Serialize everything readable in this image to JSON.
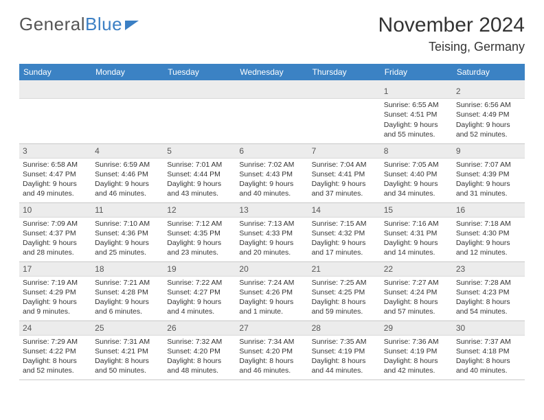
{
  "brand": {
    "part1": "General",
    "part2": "Blue"
  },
  "title": "November 2024",
  "location": "Teising, Germany",
  "colors": {
    "header_bg": "#3b82c4",
    "daynum_bg": "#ececec",
    "text": "#333333"
  },
  "weekdays": [
    "Sunday",
    "Monday",
    "Tuesday",
    "Wednesday",
    "Thursday",
    "Friday",
    "Saturday"
  ],
  "weeks": [
    [
      {
        "n": "",
        "sr": "",
        "ss": "",
        "dl": ""
      },
      {
        "n": "",
        "sr": "",
        "ss": "",
        "dl": ""
      },
      {
        "n": "",
        "sr": "",
        "ss": "",
        "dl": ""
      },
      {
        "n": "",
        "sr": "",
        "ss": "",
        "dl": ""
      },
      {
        "n": "",
        "sr": "",
        "ss": "",
        "dl": ""
      },
      {
        "n": "1",
        "sr": "Sunrise: 6:55 AM",
        "ss": "Sunset: 4:51 PM",
        "dl": "Daylight: 9 hours and 55 minutes."
      },
      {
        "n": "2",
        "sr": "Sunrise: 6:56 AM",
        "ss": "Sunset: 4:49 PM",
        "dl": "Daylight: 9 hours and 52 minutes."
      }
    ],
    [
      {
        "n": "3",
        "sr": "Sunrise: 6:58 AM",
        "ss": "Sunset: 4:47 PM",
        "dl": "Daylight: 9 hours and 49 minutes."
      },
      {
        "n": "4",
        "sr": "Sunrise: 6:59 AM",
        "ss": "Sunset: 4:46 PM",
        "dl": "Daylight: 9 hours and 46 minutes."
      },
      {
        "n": "5",
        "sr": "Sunrise: 7:01 AM",
        "ss": "Sunset: 4:44 PM",
        "dl": "Daylight: 9 hours and 43 minutes."
      },
      {
        "n": "6",
        "sr": "Sunrise: 7:02 AM",
        "ss": "Sunset: 4:43 PM",
        "dl": "Daylight: 9 hours and 40 minutes."
      },
      {
        "n": "7",
        "sr": "Sunrise: 7:04 AM",
        "ss": "Sunset: 4:41 PM",
        "dl": "Daylight: 9 hours and 37 minutes."
      },
      {
        "n": "8",
        "sr": "Sunrise: 7:05 AM",
        "ss": "Sunset: 4:40 PM",
        "dl": "Daylight: 9 hours and 34 minutes."
      },
      {
        "n": "9",
        "sr": "Sunrise: 7:07 AM",
        "ss": "Sunset: 4:39 PM",
        "dl": "Daylight: 9 hours and 31 minutes."
      }
    ],
    [
      {
        "n": "10",
        "sr": "Sunrise: 7:09 AM",
        "ss": "Sunset: 4:37 PM",
        "dl": "Daylight: 9 hours and 28 minutes."
      },
      {
        "n": "11",
        "sr": "Sunrise: 7:10 AM",
        "ss": "Sunset: 4:36 PM",
        "dl": "Daylight: 9 hours and 25 minutes."
      },
      {
        "n": "12",
        "sr": "Sunrise: 7:12 AM",
        "ss": "Sunset: 4:35 PM",
        "dl": "Daylight: 9 hours and 23 minutes."
      },
      {
        "n": "13",
        "sr": "Sunrise: 7:13 AM",
        "ss": "Sunset: 4:33 PM",
        "dl": "Daylight: 9 hours and 20 minutes."
      },
      {
        "n": "14",
        "sr": "Sunrise: 7:15 AM",
        "ss": "Sunset: 4:32 PM",
        "dl": "Daylight: 9 hours and 17 minutes."
      },
      {
        "n": "15",
        "sr": "Sunrise: 7:16 AM",
        "ss": "Sunset: 4:31 PM",
        "dl": "Daylight: 9 hours and 14 minutes."
      },
      {
        "n": "16",
        "sr": "Sunrise: 7:18 AM",
        "ss": "Sunset: 4:30 PM",
        "dl": "Daylight: 9 hours and 12 minutes."
      }
    ],
    [
      {
        "n": "17",
        "sr": "Sunrise: 7:19 AM",
        "ss": "Sunset: 4:29 PM",
        "dl": "Daylight: 9 hours and 9 minutes."
      },
      {
        "n": "18",
        "sr": "Sunrise: 7:21 AM",
        "ss": "Sunset: 4:28 PM",
        "dl": "Daylight: 9 hours and 6 minutes."
      },
      {
        "n": "19",
        "sr": "Sunrise: 7:22 AM",
        "ss": "Sunset: 4:27 PM",
        "dl": "Daylight: 9 hours and 4 minutes."
      },
      {
        "n": "20",
        "sr": "Sunrise: 7:24 AM",
        "ss": "Sunset: 4:26 PM",
        "dl": "Daylight: 9 hours and 1 minute."
      },
      {
        "n": "21",
        "sr": "Sunrise: 7:25 AM",
        "ss": "Sunset: 4:25 PM",
        "dl": "Daylight: 8 hours and 59 minutes."
      },
      {
        "n": "22",
        "sr": "Sunrise: 7:27 AM",
        "ss": "Sunset: 4:24 PM",
        "dl": "Daylight: 8 hours and 57 minutes."
      },
      {
        "n": "23",
        "sr": "Sunrise: 7:28 AM",
        "ss": "Sunset: 4:23 PM",
        "dl": "Daylight: 8 hours and 54 minutes."
      }
    ],
    [
      {
        "n": "24",
        "sr": "Sunrise: 7:29 AM",
        "ss": "Sunset: 4:22 PM",
        "dl": "Daylight: 8 hours and 52 minutes."
      },
      {
        "n": "25",
        "sr": "Sunrise: 7:31 AM",
        "ss": "Sunset: 4:21 PM",
        "dl": "Daylight: 8 hours and 50 minutes."
      },
      {
        "n": "26",
        "sr": "Sunrise: 7:32 AM",
        "ss": "Sunset: 4:20 PM",
        "dl": "Daylight: 8 hours and 48 minutes."
      },
      {
        "n": "27",
        "sr": "Sunrise: 7:34 AM",
        "ss": "Sunset: 4:20 PM",
        "dl": "Daylight: 8 hours and 46 minutes."
      },
      {
        "n": "28",
        "sr": "Sunrise: 7:35 AM",
        "ss": "Sunset: 4:19 PM",
        "dl": "Daylight: 8 hours and 44 minutes."
      },
      {
        "n": "29",
        "sr": "Sunrise: 7:36 AM",
        "ss": "Sunset: 4:19 PM",
        "dl": "Daylight: 8 hours and 42 minutes."
      },
      {
        "n": "30",
        "sr": "Sunrise: 7:37 AM",
        "ss": "Sunset: 4:18 PM",
        "dl": "Daylight: 8 hours and 40 minutes."
      }
    ]
  ]
}
